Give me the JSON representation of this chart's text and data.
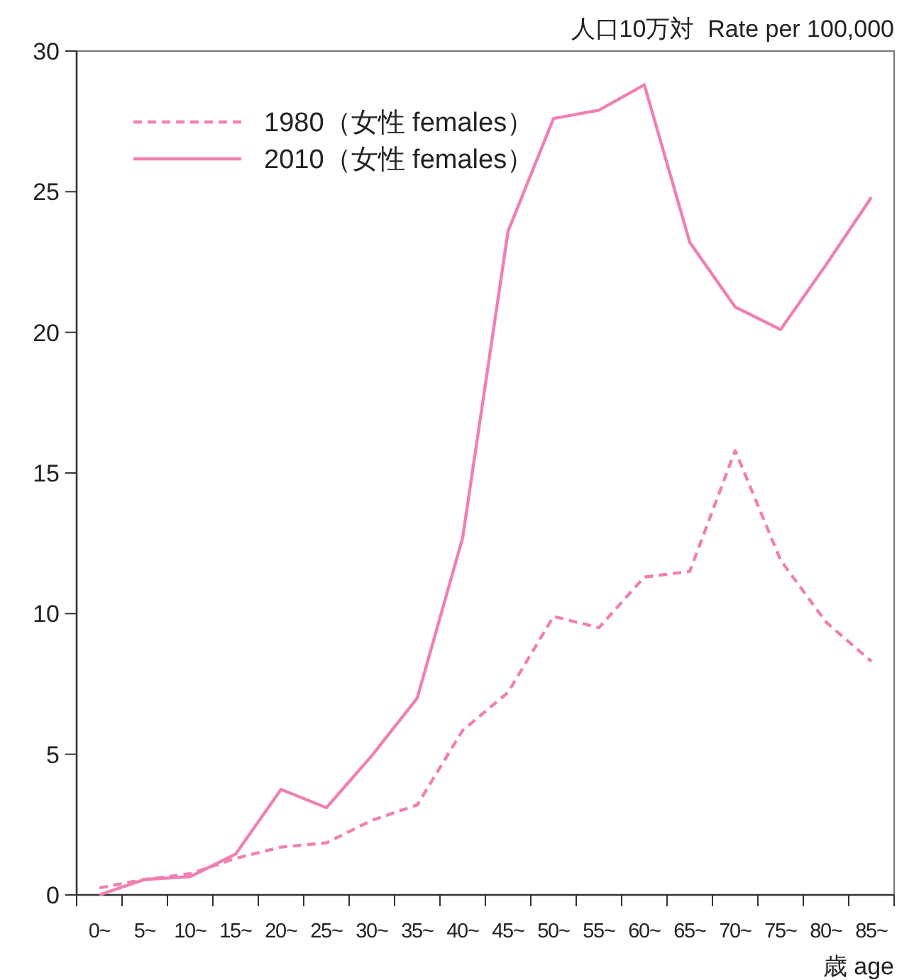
{
  "chart_data": {
    "type": "line",
    "ylabel": "人口10万対  Rate per 100,000",
    "xlabel": "歳 age",
    "categories": [
      "0~",
      "5~",
      "10~",
      "15~",
      "20~",
      "25~",
      "30~",
      "35~",
      "40~",
      "45~",
      "50~",
      "55~",
      "60~",
      "65~",
      "70~",
      "75~",
      "80~",
      "85~"
    ],
    "ylim": [
      0,
      30
    ],
    "yticks": [
      0,
      5,
      10,
      15,
      20,
      25,
      30
    ],
    "legend": "top left",
    "grid": false,
    "marker": "none",
    "series": [
      {
        "name": "1980（女性 females）",
        "color": "#f080b4",
        "line_style": "dashed",
        "values": [
          0.25,
          0.55,
          0.75,
          1.3,
          1.7,
          1.85,
          2.65,
          3.2,
          5.85,
          7.2,
          9.9,
          9.5,
          11.3,
          11.5,
          15.8,
          11.9,
          9.7,
          8.3
        ]
      },
      {
        "name": "2010（女性 females）",
        "color": "#f080b4",
        "line_style": "solid",
        "values": [
          0.0,
          0.55,
          0.65,
          1.45,
          3.75,
          3.1,
          4.95,
          7.0,
          12.7,
          23.6,
          27.6,
          27.9,
          28.8,
          23.2,
          20.9,
          20.1,
          22.4,
          24.8
        ]
      }
    ]
  }
}
